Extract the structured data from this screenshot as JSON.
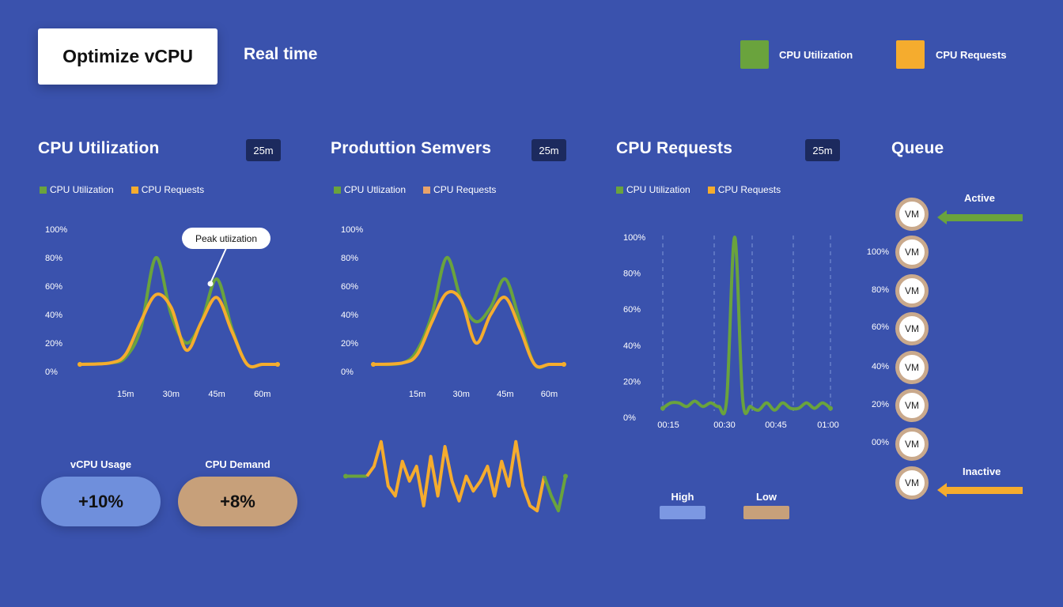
{
  "header": {
    "app_button": "Optimize vCPU",
    "title": "Real time",
    "legend": [
      {
        "label": "CPU Utilization",
        "color": "#6aa33d"
      },
      {
        "label": "CPU Requests",
        "color": "#f5ac2e"
      }
    ]
  },
  "colors": {
    "green": "#6aa33d",
    "orange": "#f5ac2e",
    "pill_blue": "#6f8fdc",
    "pill_tan": "#c7a07a"
  },
  "panels": {
    "p1": {
      "title": "CPU Utilization",
      "badge": "25m",
      "legend_a": "CPU Utilization",
      "legend_b": "CPU Requests",
      "annotation": "Peak utiization"
    },
    "p2": {
      "title": "Produttion Semvers",
      "badge": "25m",
      "legend_a": "CPU Utlization",
      "legend_b": "CPU Requests"
    },
    "p3": {
      "title": "CPU Requests",
      "badge": "25m",
      "legend_a": "CPU Utilization",
      "legend_b": "CPU Requests"
    },
    "queue": {
      "title": "Queue",
      "active_label": "Active",
      "inactive_label": "Inactive",
      "vm_label": "VM",
      "y_ticks": [
        "100%",
        "80%",
        "60%",
        "40%",
        "20%",
        "00%"
      ]
    }
  },
  "stats": {
    "usage_label": "vCPU Usage",
    "usage_value": "+10%",
    "demand_label": "CPU Demand",
    "demand_value": "+8%"
  },
  "high_low": {
    "high": "High",
    "low": "Low"
  },
  "chart_data": [
    {
      "type": "line",
      "title": "CPU Utilization",
      "x_ticks": [
        "15m",
        "30m",
        "45m",
        "60m"
      ],
      "y_ticks": [
        "100%",
        "80%",
        "60%",
        "40%",
        "20%",
        "0%"
      ],
      "ylim": [
        0,
        100
      ],
      "x": [
        0,
        10,
        15,
        20,
        25,
        30,
        35,
        40,
        45,
        50,
        55,
        60,
        65
      ],
      "series": [
        {
          "name": "CPU Utilization",
          "values": [
            5,
            6,
            10,
            30,
            80,
            40,
            20,
            35,
            65,
            30,
            5,
            5,
            5
          ]
        },
        {
          "name": "CPU Requests",
          "values": [
            5,
            6,
            12,
            35,
            54,
            45,
            15,
            35,
            52,
            28,
            5,
            5,
            5
          ]
        }
      ]
    },
    {
      "type": "line",
      "title": "Produttion Semvers",
      "x_ticks": [
        "15m",
        "30m",
        "45m",
        "60m"
      ],
      "y_ticks": [
        "100%",
        "80%",
        "60%",
        "40%",
        "20%",
        "0%"
      ],
      "ylim": [
        0,
        100
      ],
      "x": [
        0,
        10,
        15,
        20,
        25,
        30,
        35,
        40,
        45,
        50,
        55,
        60,
        65
      ],
      "series": [
        {
          "name": "CPU Utlization",
          "values": [
            5,
            6,
            15,
            40,
            80,
            50,
            35,
            45,
            65,
            35,
            5,
            5,
            5
          ]
        },
        {
          "name": "CPU Requests",
          "values": [
            5,
            6,
            12,
            35,
            55,
            50,
            20,
            40,
            52,
            30,
            5,
            5,
            5
          ]
        }
      ]
    },
    {
      "type": "line",
      "title": "",
      "values": [
        50,
        50,
        50,
        50,
        60,
        85,
        40,
        30,
        65,
        45,
        60,
        20,
        70,
        30,
        80,
        45,
        25,
        50,
        35,
        45,
        60,
        30,
        65,
        40,
        85,
        40,
        20,
        15,
        50,
        30,
        15,
        50
      ]
    },
    {
      "type": "line",
      "title": "CPU Requests",
      "x_ticks": [
        "00:15",
        "00:30",
        "00:45",
        "01:00"
      ],
      "y_ticks": [
        "100%",
        "80%",
        "60%",
        "40%",
        "20%",
        "0%"
      ],
      "ylim": [
        0,
        100
      ],
      "series": [
        {
          "name": "CPU Utilization",
          "values": [
            5,
            8,
            8,
            6,
            9,
            6,
            8,
            6,
            10,
            100,
            10,
            6,
            4,
            8,
            4,
            8,
            5,
            5,
            8,
            5,
            8,
            5
          ]
        }
      ]
    }
  ]
}
